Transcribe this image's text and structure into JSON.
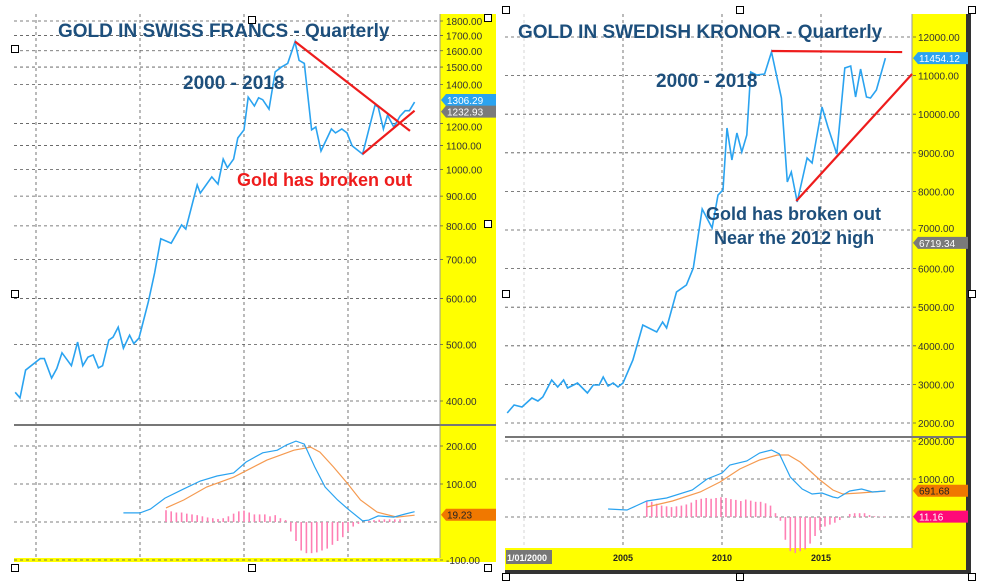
{
  "colors": {
    "price": "#2aa3f0",
    "signal": "#f59a50",
    "histogram": "#ff7fb4",
    "trend": "#ee1c1c",
    "axis_bg": "#ffff00",
    "title": "#1d4f7c"
  },
  "chart_data": [
    {
      "type": "line",
      "title": "GOLD IN SWISS FRANCS - Quarterly",
      "subtitle": "2000 - 2018",
      "annotations": [
        "Gold has broken out"
      ],
      "y_scale": "log",
      "ylim": [
        400,
        1800
      ],
      "y_ticks": [
        "1800.00",
        "1700.00",
        "1600.00",
        "1500.00",
        "1400.00",
        "1200.00",
        "1100.00",
        "1000.00",
        "900.00",
        "800.00",
        "700.00",
        "600.00",
        "500.00",
        "400.00"
      ],
      "price_labels": [
        {
          "text": "1306.29",
          "color": "#2aa3f0",
          "value": 1306.29
        },
        {
          "text": "1232.93",
          "color": "#7a7a7a",
          "value": 1232.93
        }
      ],
      "price": [
        [
          1999.0,
          414
        ],
        [
          1999.23,
          405
        ],
        [
          1999.5,
          452
        ],
        [
          2000.2,
          473
        ],
        [
          2000.4,
          473
        ],
        [
          2000.75,
          438
        ],
        [
          2001.0,
          455
        ],
        [
          2001.25,
          484
        ],
        [
          2001.7,
          460
        ],
        [
          2002.0,
          505
        ],
        [
          2002.25,
          460
        ],
        [
          2002.5,
          476
        ],
        [
          2002.75,
          480
        ],
        [
          2003.0,
          456
        ],
        [
          2003.2,
          460
        ],
        [
          2003.5,
          509
        ],
        [
          2003.7,
          515
        ],
        [
          2003.95,
          536
        ],
        [
          2004.2,
          493
        ],
        [
          2004.5,
          519
        ],
        [
          2004.7,
          502
        ],
        [
          2004.95,
          513
        ],
        [
          2005.4,
          592
        ],
        [
          2005.7,
          664
        ],
        [
          2006.0,
          760
        ],
        [
          2006.5,
          747
        ],
        [
          2007.0,
          803
        ],
        [
          2007.2,
          790
        ],
        [
          2007.75,
          941
        ],
        [
          2007.9,
          911
        ],
        [
          2008.45,
          971
        ],
        [
          2008.75,
          944
        ],
        [
          2009.0,
          1042
        ],
        [
          2009.2,
          1007
        ],
        [
          2009.5,
          1042
        ],
        [
          2009.7,
          1133
        ],
        [
          2010.0,
          1170
        ],
        [
          2010.2,
          1332
        ],
        [
          2010.5,
          1286
        ],
        [
          2010.7,
          1328
        ],
        [
          2010.9,
          1318
        ],
        [
          2011.2,
          1270
        ],
        [
          2011.5,
          1472
        ],
        [
          2011.8,
          1500
        ],
        [
          2012.1,
          1522
        ],
        [
          2012.45,
          1657
        ],
        [
          2012.65,
          1540
        ],
        [
          2012.9,
          1522
        ],
        [
          2013.25,
          1170
        ],
        [
          2013.45,
          1183
        ],
        [
          2013.7,
          1076
        ],
        [
          2014.2,
          1174
        ],
        [
          2014.4,
          1156
        ],
        [
          2014.7,
          1174
        ],
        [
          2014.95,
          1156
        ],
        [
          2015.2,
          1098
        ],
        [
          2015.7,
          1063
        ],
        [
          2016.3,
          1290
        ],
        [
          2016.45,
          1280
        ],
        [
          2016.7,
          1174
        ],
        [
          2016.9,
          1240
        ],
        [
          2017.2,
          1183
        ],
        [
          2017.5,
          1235
        ],
        [
          2017.75,
          1262
        ],
        [
          2017.95,
          1262
        ],
        [
          2018.2,
          1306
        ]
      ],
      "trendlines": [
        [
          [
            2012.45,
            1660
          ],
          [
            2017.98,
            1165
          ]
        ],
        [
          [
            2015.7,
            1063
          ],
          [
            2018.2,
            1262
          ]
        ]
      ],
      "macd": {
        "ylim": [
          -100,
          250
        ],
        "y_ticks": [
          "200.00",
          "100.00",
          "-100.00"
        ],
        "labels": [
          {
            "text": "19.23",
            "color": "#f07800",
            "value": 19.23
          }
        ],
        "macd": [
          [
            2004.2,
            24
          ],
          [
            2005.0,
            24
          ],
          [
            2005.5,
            34
          ],
          [
            2006.2,
            63
          ],
          [
            2007.1,
            87
          ],
          [
            2007.9,
            108
          ],
          [
            2008.7,
            121
          ],
          [
            2009.5,
            129
          ],
          [
            2010.1,
            158
          ],
          [
            2010.9,
            182
          ],
          [
            2011.6,
            189
          ],
          [
            2012.05,
            203
          ],
          [
            2012.5,
            213
          ],
          [
            2012.9,
            205
          ],
          [
            2013.4,
            145
          ],
          [
            2013.9,
            92
          ],
          [
            2014.5,
            58
          ],
          [
            2015.0,
            34
          ],
          [
            2015.7,
            3
          ],
          [
            2016.0,
            5
          ],
          [
            2016.45,
            16
          ],
          [
            2017.2,
            13
          ],
          [
            2017.75,
            21
          ],
          [
            2018.2,
            27
          ]
        ],
        "signal": [
          [
            2006.25,
            37
          ],
          [
            2007.1,
            58
          ],
          [
            2008.2,
            92
          ],
          [
            2009.5,
            118
          ],
          [
            2011.1,
            163
          ],
          [
            2012.4,
            189
          ],
          [
            2013.2,
            197
          ],
          [
            2013.65,
            184
          ],
          [
            2014.3,
            145
          ],
          [
            2014.95,
            103
          ],
          [
            2015.6,
            58
          ],
          [
            2016.4,
            26
          ],
          [
            2017.35,
            13
          ],
          [
            2018.2,
            18
          ]
        ],
        "histogram": {
          "start": 2006.25,
          "step": 0.25,
          "values": [
            31,
            28,
            25,
            25,
            22,
            20,
            18,
            15,
            12,
            10,
            8,
            10,
            15,
            22,
            28,
            30,
            25,
            20,
            20,
            20,
            15,
            18,
            10,
            5,
            -25,
            -50,
            -75,
            -82,
            -82,
            -80,
            -75,
            -70,
            -60,
            -50,
            -40,
            -25,
            -12,
            -5,
            0,
            3,
            5,
            6,
            7,
            7,
            7,
            7
          ]
        }
      }
    },
    {
      "type": "line",
      "title": "GOLD IN SWEDISH KRONOR - Quarterly",
      "subtitle": "2000 - 2018",
      "annotations": [
        "Gold has broken out",
        "Near the 2012 high"
      ],
      "y_scale": "linear",
      "ylim": [
        2000,
        12000
      ],
      "y_ticks": [
        "12000.00",
        "11000.00",
        "10000.00",
        "9000.00",
        "8000.00",
        "7000.00",
        "6000.00",
        "5000.00",
        "4000.00",
        "3000.00",
        "2000.00"
      ],
      "x_ticks": [
        "1/01/2000",
        "2005",
        "2010",
        "2015"
      ],
      "price_labels": [
        {
          "text": "11454.12",
          "color": "#2aa3f0",
          "value": 11454.12
        },
        {
          "text": "6719.34",
          "color": "#7a7a7a",
          "value": 6719.34
        }
      ],
      "price": [
        [
          1999.15,
          2259
        ],
        [
          1999.5,
          2466
        ],
        [
          1999.9,
          2414
        ],
        [
          2000.4,
          2648
        ],
        [
          2000.7,
          2570
        ],
        [
          2000.95,
          2674
        ],
        [
          2001.4,
          3114
        ],
        [
          2001.7,
          2933
        ],
        [
          2002.0,
          3114
        ],
        [
          2002.2,
          2907
        ],
        [
          2002.7,
          3036
        ],
        [
          2003.2,
          2777
        ],
        [
          2003.5,
          2984
        ],
        [
          2003.8,
          2984
        ],
        [
          2004.0,
          3192
        ],
        [
          2004.25,
          2959
        ],
        [
          2004.5,
          3036
        ],
        [
          2004.75,
          2933
        ],
        [
          2005.0,
          3036
        ],
        [
          2005.5,
          3632
        ],
        [
          2006.0,
          4539
        ],
        [
          2006.7,
          4357
        ],
        [
          2007.0,
          4617
        ],
        [
          2007.2,
          4461
        ],
        [
          2007.7,
          5394
        ],
        [
          2008.2,
          5575
        ],
        [
          2008.55,
          6016
        ],
        [
          2009.0,
          7544
        ],
        [
          2009.5,
          7052
        ],
        [
          2009.8,
          7907
        ],
        [
          2010.05,
          8036
        ],
        [
          2010.25,
          9642
        ],
        [
          2010.5,
          8813
        ],
        [
          2010.75,
          9513
        ],
        [
          2011.0,
          9021
        ],
        [
          2011.25,
          9461
        ],
        [
          2011.45,
          11093
        ],
        [
          2011.75,
          11016
        ],
        [
          2012.15,
          11041
        ],
        [
          2012.5,
          11611
        ],
        [
          2013.0,
          10420
        ],
        [
          2013.3,
          8244
        ],
        [
          2013.5,
          8503
        ],
        [
          2013.8,
          7725
        ],
        [
          2014.3,
          8865
        ],
        [
          2014.55,
          8736
        ],
        [
          2015.05,
          10187
        ],
        [
          2015.35,
          9668
        ],
        [
          2015.8,
          8969
        ],
        [
          2016.2,
          11197
        ],
        [
          2016.5,
          11249
        ],
        [
          2016.75,
          10446
        ],
        [
          2017.0,
          11171
        ],
        [
          2017.3,
          10446
        ],
        [
          2017.5,
          10420
        ],
        [
          2017.8,
          10627
        ],
        [
          2018.25,
          11454
        ]
      ],
      "trendlines": [
        [
          [
            2012.5,
            11637
          ],
          [
            2019.1,
            11611
          ]
        ],
        [
          [
            2013.75,
            7751
          ],
          [
            2019.6,
            11041
          ]
        ]
      ],
      "macd": {
        "ylim": [
          -800,
          2000
        ],
        "y_ticks": [
          "2000.00",
          "1000.00"
        ],
        "labels": [
          {
            "text": "691.68",
            "color": "#f07800",
            "value": 691.68
          },
          {
            "text": "11.16",
            "color": "#ff0a78",
            "value": 11.16
          }
        ],
        "macd": [
          [
            2004.25,
            210
          ],
          [
            2005.2,
            184
          ],
          [
            2006.2,
            421
          ],
          [
            2007.2,
            500
          ],
          [
            2008.5,
            710
          ],
          [
            2009.25,
            1000
          ],
          [
            2010.0,
            1158
          ],
          [
            2010.4,
            1368
          ],
          [
            2011.25,
            1474
          ],
          [
            2011.9,
            1684
          ],
          [
            2012.5,
            1763
          ],
          [
            2012.9,
            1658
          ],
          [
            2013.45,
            1053
          ],
          [
            2014.05,
            737
          ],
          [
            2014.55,
            605
          ],
          [
            2015.05,
            632
          ],
          [
            2015.6,
            526
          ],
          [
            2015.85,
            500
          ],
          [
            2016.45,
            684
          ],
          [
            2017.05,
            737
          ],
          [
            2017.6,
            658
          ],
          [
            2018.25,
            684
          ]
        ],
        "signal": [
          [
            2006.2,
            263
          ],
          [
            2007.5,
            421
          ],
          [
            2008.9,
            658
          ],
          [
            2009.9,
            921
          ],
          [
            2010.9,
            1263
          ],
          [
            2011.9,
            1500
          ],
          [
            2012.8,
            1632
          ],
          [
            2013.35,
            1632
          ],
          [
            2013.95,
            1447
          ],
          [
            2014.95,
            974
          ],
          [
            2015.6,
            711
          ],
          [
            2016.1,
            605
          ],
          [
            2016.95,
            632
          ],
          [
            2018.25,
            684
          ]
        ],
        "histogram": {
          "start": 2006.2,
          "step": 0.25,
          "values": [
            410,
            400,
            350,
            300,
            280,
            260,
            280,
            300,
            330,
            380,
            450,
            480,
            500,
            480,
            500,
            520,
            500,
            470,
            450,
            420,
            460,
            430,
            400,
            400,
            360,
            300,
            100,
            -100,
            -600,
            -900,
            -950,
            -900,
            -850,
            -700,
            -500,
            -350,
            -250,
            -200,
            -150,
            -80,
            0,
            80,
            100,
            100,
            100,
            50,
            20,
            10,
            10
          ]
        }
      }
    }
  ]
}
